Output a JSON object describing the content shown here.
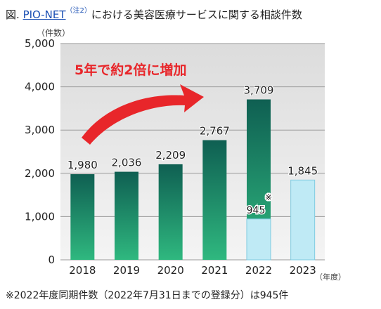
{
  "header": {
    "prefix": "図.",
    "link_text": "PIO-NET",
    "note_mark": "（注2）",
    "suffix": "における美容医療サービスに関する相談件数"
  },
  "chart_data": {
    "type": "bar",
    "categories": [
      "2018",
      "2019",
      "2020",
      "2021",
      "2022",
      "2023"
    ],
    "values": [
      1980,
      2036,
      2209,
      2767,
      3709,
      1845
    ],
    "value_labels": [
      "1,980",
      "2,036",
      "2,209",
      "2,767",
      "3,709",
      "1,845"
    ],
    "same_period_2022": {
      "value": 945,
      "label": "945",
      "mark": "※"
    },
    "ylabel": "（件数）",
    "xlabel": "（年度）",
    "ylim": [
      0,
      5000
    ],
    "yticks": [
      0,
      1000,
      2000,
      3000,
      4000,
      5000
    ],
    "ytick_labels": [
      "0",
      "1,000",
      "2,000",
      "3,000",
      "4,000",
      "5,000"
    ],
    "annotation": "5年で約2倍に増加",
    "grid": true,
    "colors": {
      "bar_top": "#0f5f52",
      "bar_bottom": "#2fb87f",
      "bar_2023": "#bfeaf5",
      "bar_2023_stroke": "#7fcbe0",
      "arrow": "#e8262a",
      "annotation_text": "#e8262a",
      "plot_bg_top": "#dcdcdc",
      "plot_bg_bottom": "#f4f4f4"
    }
  },
  "footnote": "※2022年度同期件数（2022年7月31日までの登録分）は945件"
}
